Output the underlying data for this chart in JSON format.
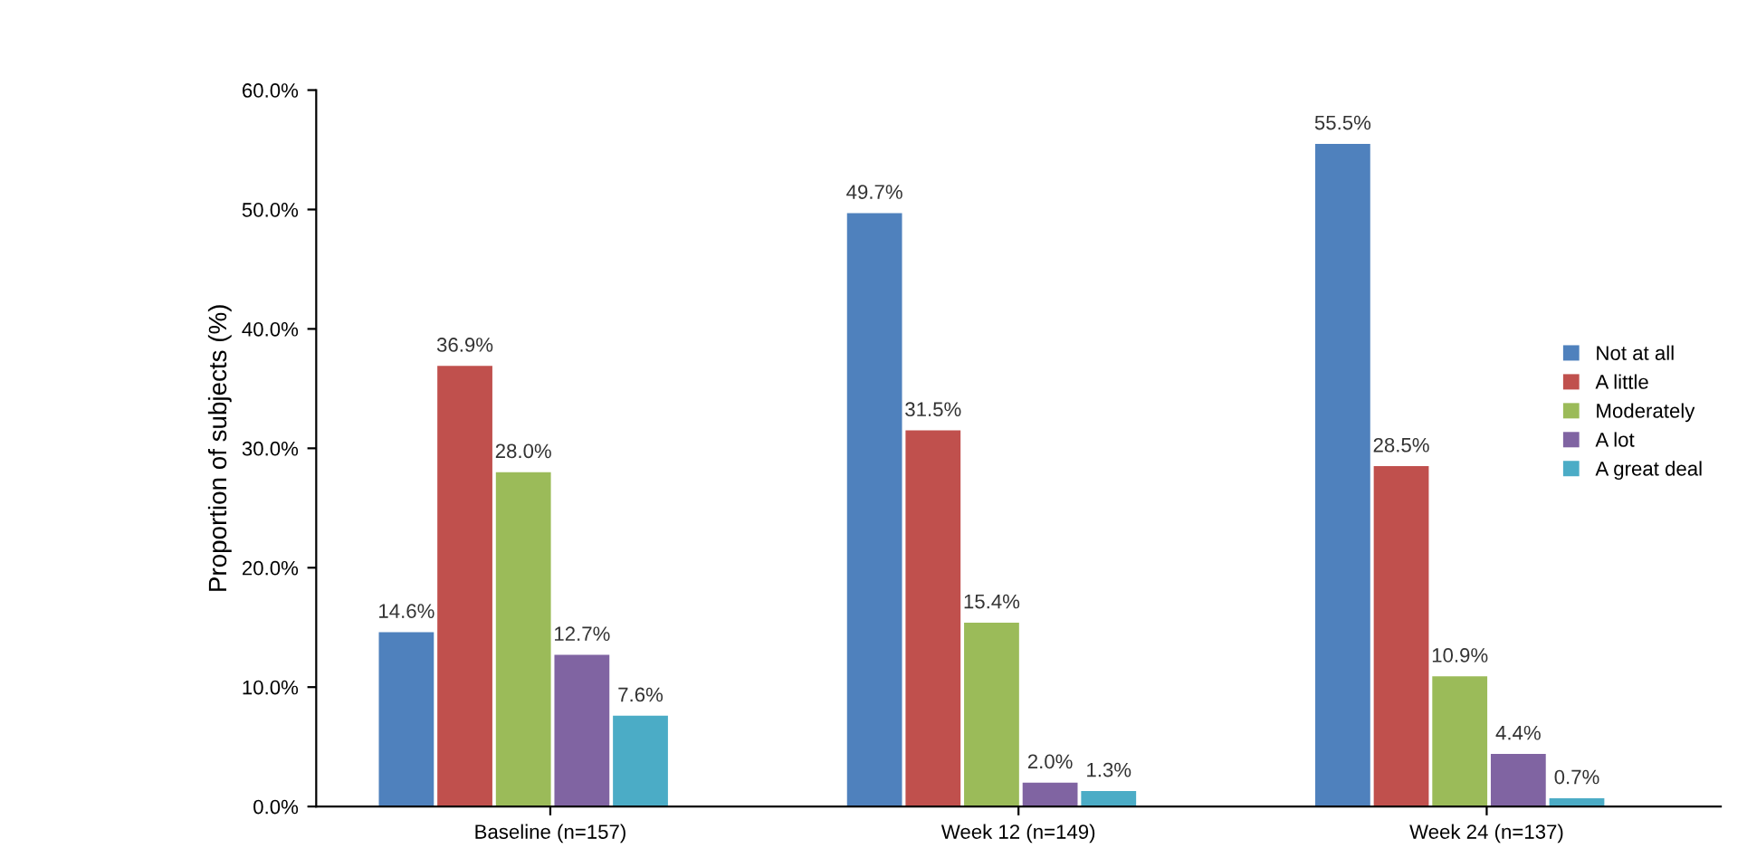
{
  "chart_data": {
    "type": "bar",
    "ylabel": "Proportion of subjects (%)",
    "categories": [
      "Baseline (n=157)",
      "Week 12 (n=149)",
      "Week 24 (n=137)"
    ],
    "series": [
      {
        "name": "Not at all",
        "color": "#4f81bd",
        "values": [
          14.6,
          49.7,
          55.5
        ],
        "value_labels": [
          "14.6%",
          "49.7%",
          "55.5%"
        ]
      },
      {
        "name": "A little",
        "color": "#c0504d",
        "values": [
          36.9,
          31.5,
          28.5
        ],
        "value_labels": [
          "36.9%",
          "31.5%",
          "28.5%"
        ]
      },
      {
        "name": "Moderately",
        "color": "#9bbb59",
        "values": [
          28.0,
          15.4,
          10.9
        ],
        "value_labels": [
          "28.0%",
          "15.4%",
          "10.9%"
        ]
      },
      {
        "name": "A lot",
        "color": "#8064a2",
        "values": [
          12.7,
          2.0,
          4.4
        ],
        "value_labels": [
          "12.7%",
          "2.0%",
          "4.4%"
        ]
      },
      {
        "name": "A great deal",
        "color": "#4bacc6",
        "values": [
          7.6,
          1.3,
          0.7
        ],
        "value_labels": [
          "7.6%",
          "1.3%",
          "0.7%"
        ]
      }
    ],
    "ylim": [
      0,
      60
    ],
    "yticks": [
      {
        "value": 0,
        "label": "0.0%"
      },
      {
        "value": 10,
        "label": "10.0%"
      },
      {
        "value": 20,
        "label": "20.0%"
      },
      {
        "value": 30,
        "label": "30.0%"
      },
      {
        "value": 40,
        "label": "40.0%"
      },
      {
        "value": 50,
        "label": "50.0%"
      },
      {
        "value": 60,
        "label": "60.0%"
      }
    ],
    "grid": false,
    "legend": "right"
  }
}
